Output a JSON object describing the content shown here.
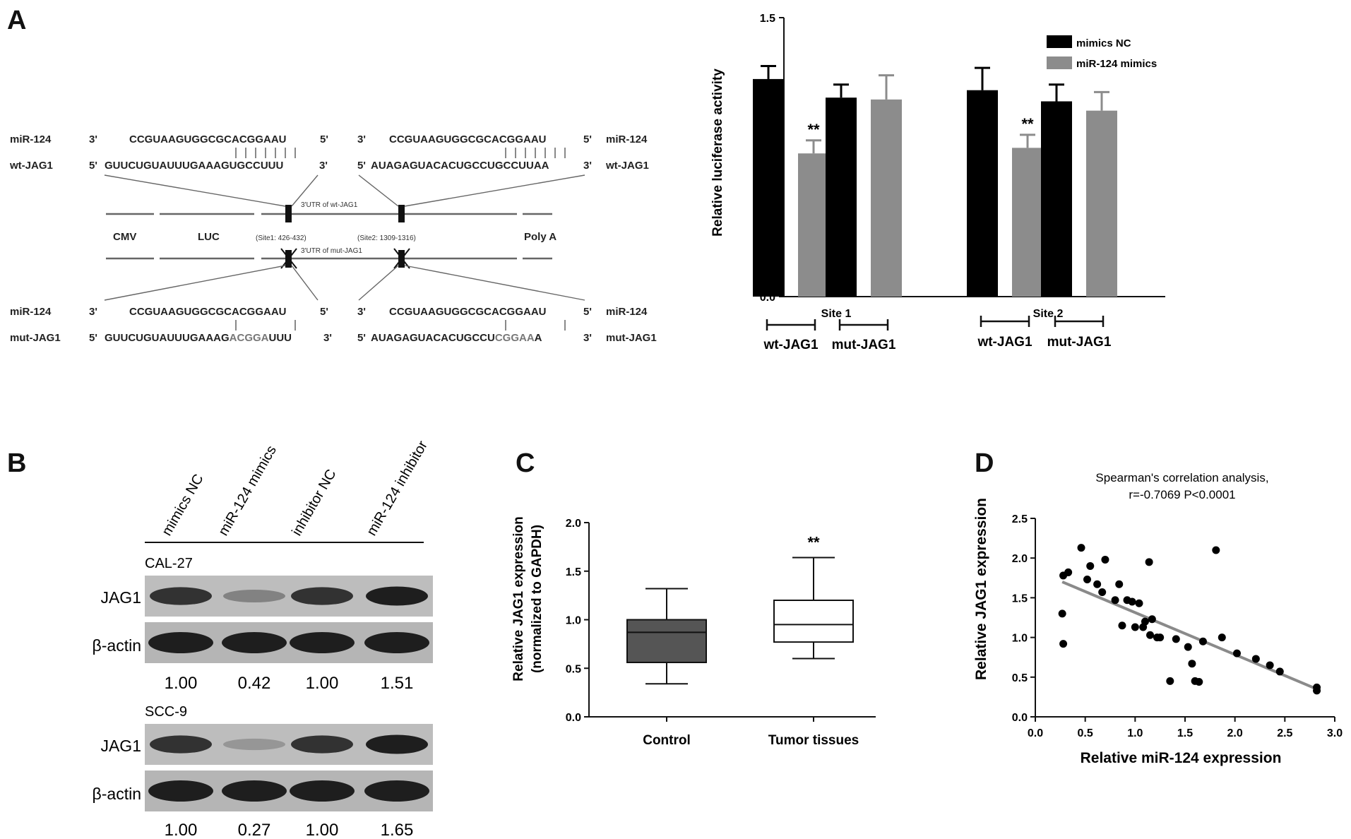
{
  "panels": {
    "A": {
      "label": "A",
      "diagram": {
        "top_left": {
          "mir_name": "miR-124",
          "mir_3": "3'",
          "mir_seq": "CCGUAAGUGGCGCACGGAAU",
          "mir_5": "5'",
          "target_name": "wt-JAG1",
          "t_5": "5'",
          "target_seq": "GUUCUGUAUUUGAAAGUGCCUUU",
          "t_3": "3'"
        },
        "top_right": {
          "mir_3": "3'",
          "mir_seq": "CCGUAAGUGGCGCACGGAAU",
          "mir_5": "5'",
          "mir_name": "miR-124",
          "t_5": "5'",
          "target_seq": "AUAGAGUACACUGCCUGCCUUAA",
          "t_3": "3'",
          "target_name": "wt-JAG1"
        },
        "bottom_left": {
          "mir_name": "miR-124",
          "mir_3": "3'",
          "mir_seq": "CCGUAAGUGGCGCACGGAAU",
          "mir_5": "5'",
          "target_name": "mut-JAG1",
          "t_5": "5'",
          "target_seq_a": "GUUCUGUAUUUGAAAG",
          "target_seq_mut": "ACGGA",
          "target_seq_b": "UUU",
          "t_3": "3'"
        },
        "bottom_right": {
          "mir_3": "3'",
          "mir_seq": "CCGUAAGUGGCGCACGGAAU",
          "mir_5": "5'",
          "mir_name": "miR-124",
          "t_5": "5'",
          "target_seq_a": "AUAGAGUACACUGCCU",
          "target_seq_mut": "CGGAA",
          "target_seq_b": "A",
          "t_3": "3'",
          "target_name": "mut-JAG1"
        },
        "wt_utr": "3'UTR of wt-JAG1",
        "mut_utr": "3'UTR of mut-JAG1",
        "cmv": "CMV",
        "luc": "LUC",
        "site1": "(Site1: 426-432)",
        "site2": "(Site2: 1309-1316)",
        "polya": "Poly A"
      }
    },
    "B": {
      "label": "B",
      "lanes": [
        "mimics NC",
        "miR-124 mimics",
        "inhibitor NC",
        "miR-124 inhibitor"
      ],
      "blots": [
        {
          "cell_line": "CAL-27",
          "protein": "JAG1",
          "control": "β-actin",
          "values": [
            "1.00",
            "0.42",
            "1.00",
            "1.51"
          ],
          "band_intensity": [
            0.85,
            0.45,
            0.85,
            0.95
          ]
        },
        {
          "cell_line": "SCC-9",
          "protein": "JAG1",
          "control": "β-actin",
          "values": [
            "1.00",
            "0.27",
            "1.00",
            "1.65"
          ],
          "band_intensity": [
            0.85,
            0.35,
            0.85,
            0.95
          ]
        }
      ]
    },
    "C": {
      "label": "C"
    },
    "D": {
      "label": "D"
    }
  },
  "chart_data": [
    {
      "type": "bar",
      "panel": "A",
      "ylabel": "Relative luciferase activity",
      "ylim": [
        0,
        1.5
      ],
      "yticks": [
        "0.0",
        "0.5",
        "1.0",
        "1.5"
      ],
      "sites": [
        "Site 1",
        "Site 2"
      ],
      "groups": [
        "wt-JAG1",
        "mut-JAG1",
        "wt-JAG1",
        "mut-JAG1"
      ],
      "series": [
        {
          "name": "mimics NC",
          "color": "#000000",
          "values": [
            1.17,
            1.07,
            1.11,
            1.05
          ],
          "errors": [
            0.07,
            0.07,
            0.12,
            0.09
          ]
        },
        {
          "name": "miR-124 mimics",
          "color": "#8c8c8c",
          "values": [
            0.77,
            1.06,
            0.8,
            1.0
          ],
          "errors": [
            0.07,
            0.13,
            0.07,
            0.1
          ]
        }
      ],
      "significance": [
        "**",
        "",
        "**",
        ""
      ],
      "legend": "top-right"
    },
    {
      "type": "box",
      "panel": "C",
      "ylabel_line1": "Relative JAG1 expression",
      "ylabel_line2": "(normalized to GAPDH)",
      "ylim": [
        0,
        2.0
      ],
      "yticks": [
        "0.0",
        "0.5",
        "1.0",
        "1.5",
        "2.0"
      ],
      "categories": [
        "Control",
        "Tumor tissues"
      ],
      "boxes": [
        {
          "min": 0.34,
          "q1": 0.56,
          "median": 0.87,
          "q3": 1.0,
          "max": 1.32,
          "fill": "#555555"
        },
        {
          "min": 0.6,
          "q1": 0.77,
          "median": 0.95,
          "q3": 1.2,
          "max": 1.64,
          "fill": "#ffffff"
        }
      ],
      "significance": [
        "",
        "**"
      ]
    },
    {
      "type": "scatter",
      "panel": "D",
      "title_line1": "Spearman's correlation analysis,",
      "title_line2": "r=-0.7069   P<0.0001",
      "xlabel": "Relative miR-124 expression",
      "ylabel": "Relative JAG1 expression",
      "xlim": [
        0,
        3.0
      ],
      "ylim": [
        0,
        2.5
      ],
      "xticks": [
        "0.0",
        "0.5",
        "1.0",
        "1.5",
        "2.0",
        "2.5",
        "3.0"
      ],
      "yticks": [
        "0.0",
        "0.5",
        "1.0",
        "1.5",
        "2.0",
        "2.5"
      ],
      "points": [
        [
          0.27,
          1.3
        ],
        [
          0.28,
          0.92
        ],
        [
          0.28,
          1.78
        ],
        [
          0.33,
          1.82
        ],
        [
          0.46,
          2.13
        ],
        [
          0.52,
          1.73
        ],
        [
          0.55,
          1.9
        ],
        [
          0.62,
          1.67
        ],
        [
          0.67,
          1.57
        ],
        [
          0.7,
          1.98
        ],
        [
          0.8,
          1.47
        ],
        [
          0.84,
          1.67
        ],
        [
          0.87,
          1.15
        ],
        [
          0.92,
          1.47
        ],
        [
          0.97,
          1.45
        ],
        [
          1.0,
          1.13
        ],
        [
          1.04,
          1.43
        ],
        [
          1.08,
          1.13
        ],
        [
          1.1,
          1.2
        ],
        [
          1.14,
          1.95
        ],
        [
          1.15,
          1.03
        ],
        [
          1.17,
          1.23
        ],
        [
          1.22,
          1.0
        ],
        [
          1.25,
          1.0
        ],
        [
          1.35,
          0.45
        ],
        [
          1.41,
          0.98
        ],
        [
          1.53,
          0.88
        ],
        [
          1.57,
          0.67
        ],
        [
          1.6,
          0.45
        ],
        [
          1.64,
          0.44
        ],
        [
          1.68,
          0.95
        ],
        [
          1.81,
          2.1
        ],
        [
          1.87,
          1.0
        ],
        [
          2.02,
          0.8
        ],
        [
          2.21,
          0.73
        ],
        [
          2.35,
          0.65
        ],
        [
          2.45,
          0.57
        ],
        [
          2.82,
          0.37
        ],
        [
          2.82,
          0.33
        ]
      ],
      "fit": {
        "x": [
          0.27,
          2.82
        ],
        "y": [
          1.7,
          0.35
        ]
      }
    }
  ]
}
